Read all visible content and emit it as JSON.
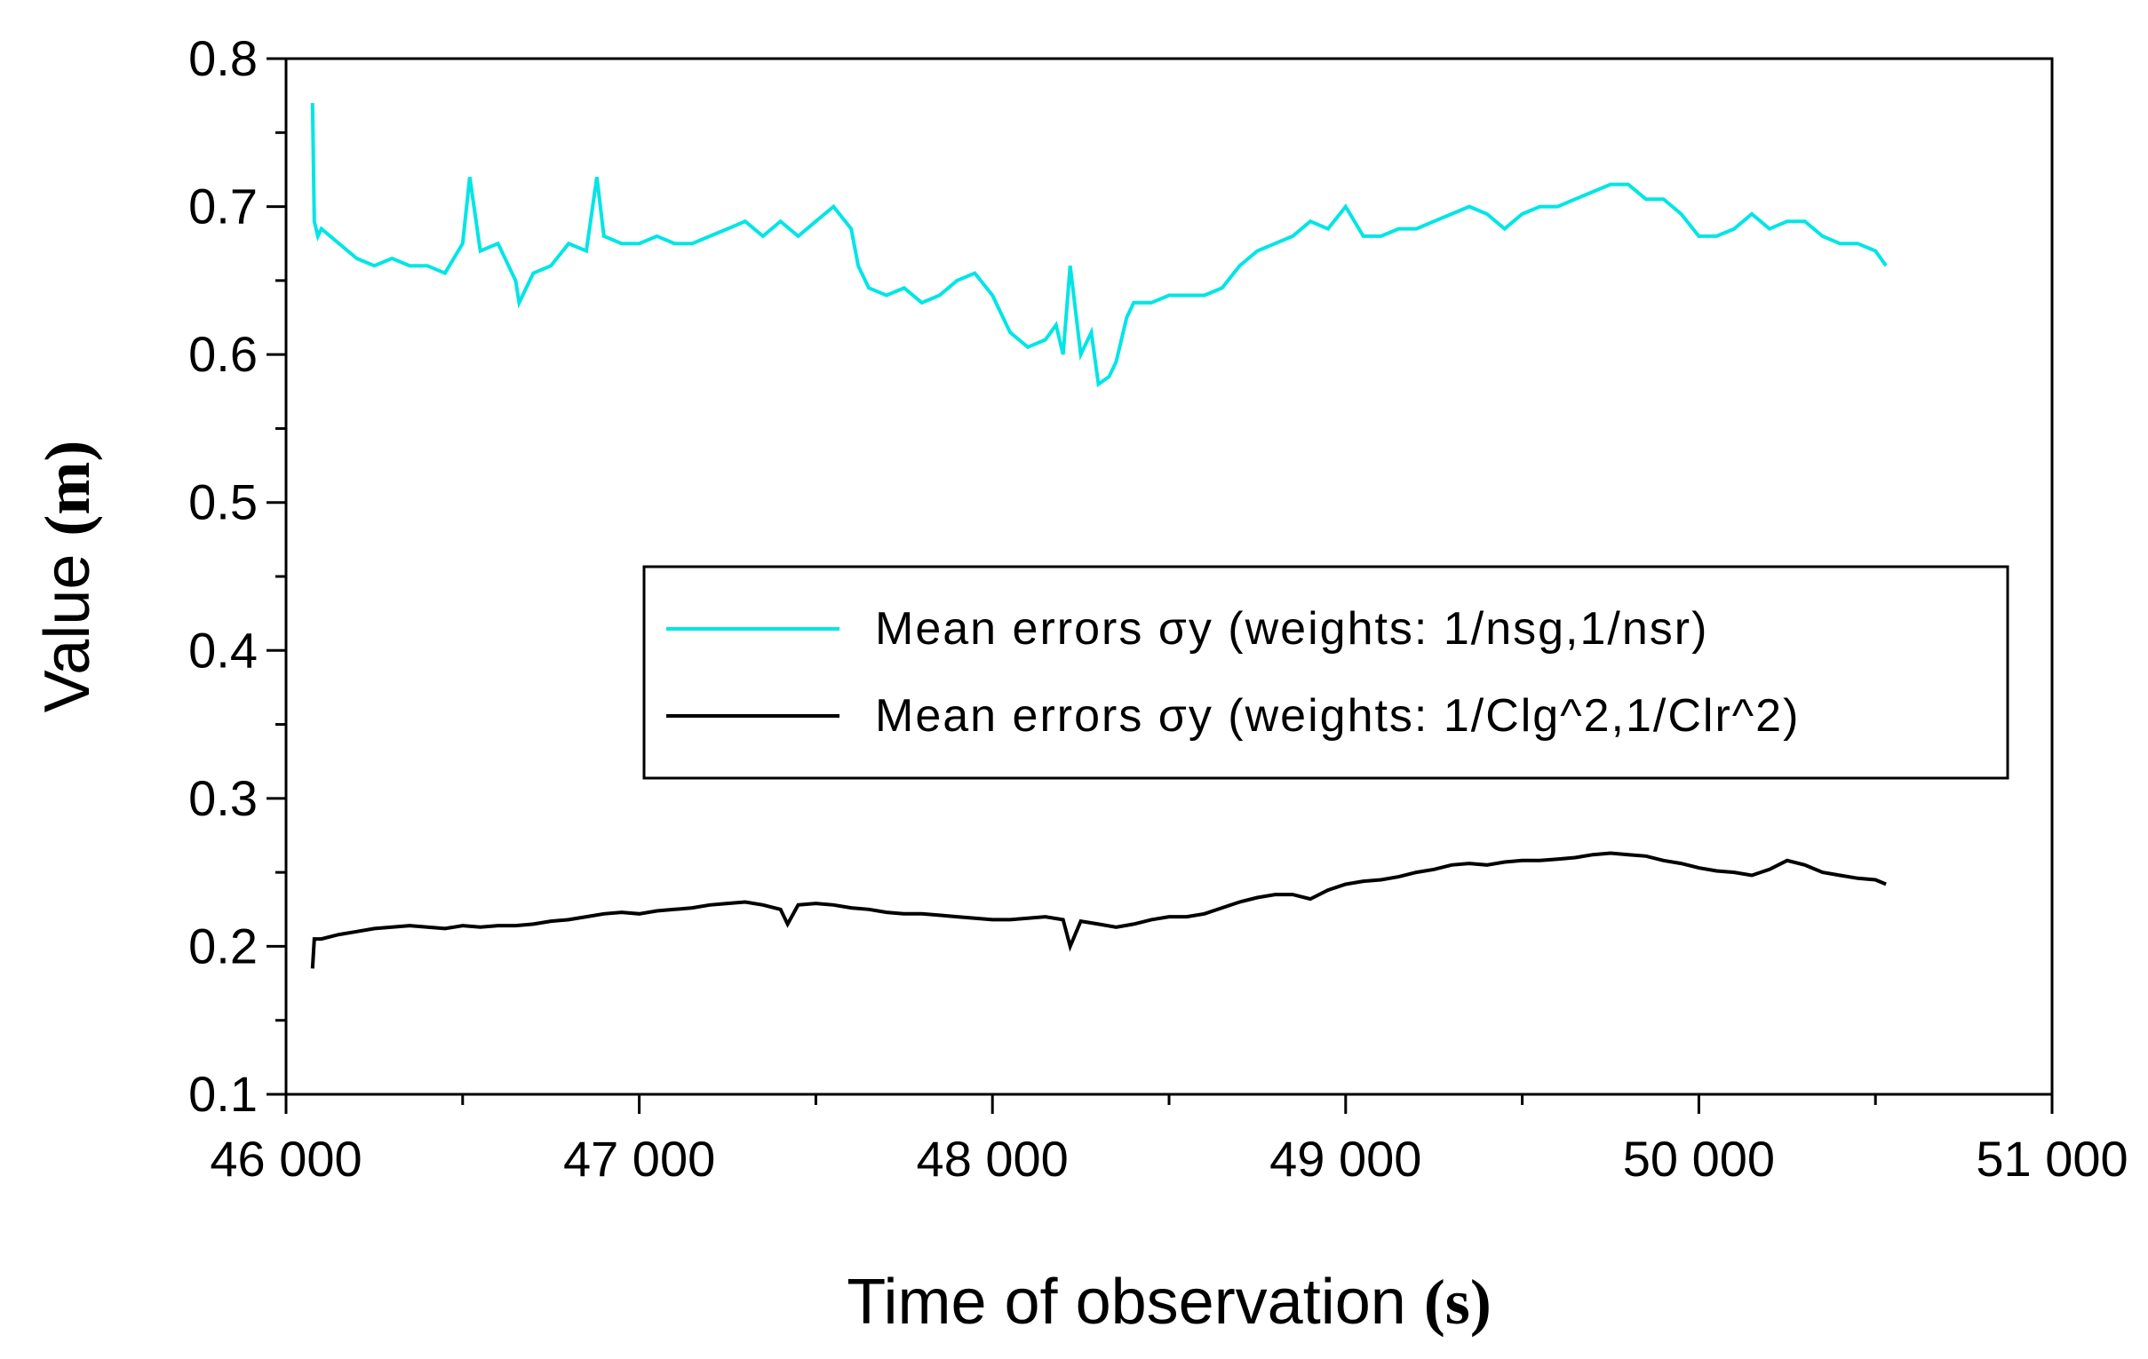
{
  "chart_data": {
    "type": "line",
    "title": "",
    "xlabel": "Time of observation",
    "xlabel_unit": "(s)",
    "ylabel": "Value",
    "ylabel_unit": "(m)",
    "xlim": [
      46000,
      51000
    ],
    "ylim": [
      0.1,
      0.8
    ],
    "x_ticks": [
      46000,
      47000,
      48000,
      49000,
      50000,
      51000
    ],
    "x_tick_labels": [
      "46 000",
      "47 000",
      "48 000",
      "49 000",
      "50 000",
      "51 000"
    ],
    "y_ticks": [
      0.1,
      0.2,
      0.3,
      0.4,
      0.5,
      0.6,
      0.7,
      0.8
    ],
    "y_tick_labels": [
      "0.1",
      "0.2",
      "0.3",
      "0.4",
      "0.5",
      "0.6",
      "0.7",
      "0.8"
    ],
    "grid": false,
    "legend_position": "center-right",
    "series": [
      {
        "name": "Mean errors σy (weights: 1/nsg,1/nsr)",
        "color": "#00e5e5",
        "x": [
          46075,
          46080,
          46090,
          46100,
          46150,
          46200,
          46250,
          46300,
          46350,
          46400,
          46450,
          46500,
          46520,
          46550,
          46600,
          46650,
          46660,
          46700,
          46750,
          46800,
          46850,
          46880,
          46900,
          46950,
          47000,
          47050,
          47100,
          47150,
          47200,
          47250,
          47300,
          47350,
          47400,
          47450,
          47500,
          47550,
          47600,
          47620,
          47650,
          47700,
          47750,
          47800,
          47850,
          47900,
          47950,
          48000,
          48050,
          48100,
          48150,
          48180,
          48200,
          48220,
          48250,
          48280,
          48300,
          48330,
          48350,
          48380,
          48400,
          48450,
          48500,
          48550,
          48600,
          48650,
          48700,
          48750,
          48800,
          48850,
          48900,
          48950,
          49000,
          49050,
          49100,
          49150,
          49200,
          49250,
          49300,
          49350,
          49400,
          49450,
          49500,
          49550,
          49600,
          49650,
          49700,
          49750,
          49800,
          49850,
          49900,
          49950,
          50000,
          50050,
          50100,
          50150,
          50200,
          50250,
          50300,
          50350,
          50400,
          50450,
          50500,
          50530
        ],
        "values": [
          0.77,
          0.69,
          0.68,
          0.685,
          0.675,
          0.665,
          0.66,
          0.665,
          0.66,
          0.66,
          0.655,
          0.675,
          0.72,
          0.67,
          0.675,
          0.65,
          0.635,
          0.655,
          0.66,
          0.675,
          0.67,
          0.72,
          0.68,
          0.675,
          0.675,
          0.68,
          0.675,
          0.675,
          0.68,
          0.685,
          0.69,
          0.68,
          0.69,
          0.68,
          0.69,
          0.7,
          0.685,
          0.66,
          0.645,
          0.64,
          0.645,
          0.635,
          0.64,
          0.65,
          0.655,
          0.64,
          0.615,
          0.605,
          0.61,
          0.62,
          0.6,
          0.66,
          0.6,
          0.615,
          0.58,
          0.585,
          0.595,
          0.625,
          0.635,
          0.635,
          0.64,
          0.64,
          0.64,
          0.645,
          0.66,
          0.67,
          0.675,
          0.68,
          0.69,
          0.685,
          0.7,
          0.68,
          0.68,
          0.685,
          0.685,
          0.69,
          0.695,
          0.7,
          0.695,
          0.685,
          0.695,
          0.7,
          0.7,
          0.705,
          0.71,
          0.715,
          0.715,
          0.705,
          0.705,
          0.695,
          0.68,
          0.68,
          0.685,
          0.695,
          0.685,
          0.69,
          0.69,
          0.68,
          0.675,
          0.675,
          0.67,
          0.66
        ]
      },
      {
        "name": "Mean errors σy (weights: 1/Clg^2,1/Clr^2)",
        "color": "#000000",
        "x": [
          46075,
          46080,
          46100,
          46150,
          46200,
          46250,
          46300,
          46350,
          46400,
          46450,
          46500,
          46550,
          46600,
          46650,
          46700,
          46750,
          46800,
          46850,
          46900,
          46950,
          47000,
          47050,
          47100,
          47150,
          47200,
          47250,
          47300,
          47350,
          47400,
          47420,
          47450,
          47500,
          47550,
          47600,
          47650,
          47700,
          47750,
          47800,
          47850,
          47900,
          47950,
          48000,
          48050,
          48100,
          48150,
          48200,
          48220,
          48250,
          48300,
          48350,
          48400,
          48450,
          48500,
          48550,
          48600,
          48650,
          48700,
          48750,
          48800,
          48850,
          48900,
          48950,
          49000,
          49050,
          49100,
          49150,
          49200,
          49250,
          49300,
          49350,
          49400,
          49450,
          49500,
          49550,
          49600,
          49650,
          49700,
          49750,
          49800,
          49850,
          49900,
          49950,
          50000,
          50050,
          50100,
          50150,
          50200,
          50250,
          50300,
          50350,
          50400,
          50450,
          50500,
          50530
        ],
        "values": [
          0.185,
          0.205,
          0.205,
          0.208,
          0.21,
          0.212,
          0.213,
          0.214,
          0.213,
          0.212,
          0.214,
          0.213,
          0.214,
          0.214,
          0.215,
          0.217,
          0.218,
          0.22,
          0.222,
          0.223,
          0.222,
          0.224,
          0.225,
          0.226,
          0.228,
          0.229,
          0.23,
          0.228,
          0.225,
          0.215,
          0.228,
          0.229,
          0.228,
          0.226,
          0.225,
          0.223,
          0.222,
          0.222,
          0.221,
          0.22,
          0.219,
          0.218,
          0.218,
          0.219,
          0.22,
          0.218,
          0.2,
          0.217,
          0.215,
          0.213,
          0.215,
          0.218,
          0.22,
          0.22,
          0.222,
          0.226,
          0.23,
          0.233,
          0.235,
          0.235,
          0.232,
          0.238,
          0.242,
          0.244,
          0.245,
          0.247,
          0.25,
          0.252,
          0.255,
          0.256,
          0.255,
          0.257,
          0.258,
          0.258,
          0.259,
          0.26,
          0.262,
          0.263,
          0.262,
          0.261,
          0.258,
          0.256,
          0.253,
          0.251,
          0.25,
          0.248,
          0.252,
          0.258,
          0.255,
          0.25,
          0.248,
          0.246,
          0.245,
          0.242
        ]
      }
    ]
  }
}
